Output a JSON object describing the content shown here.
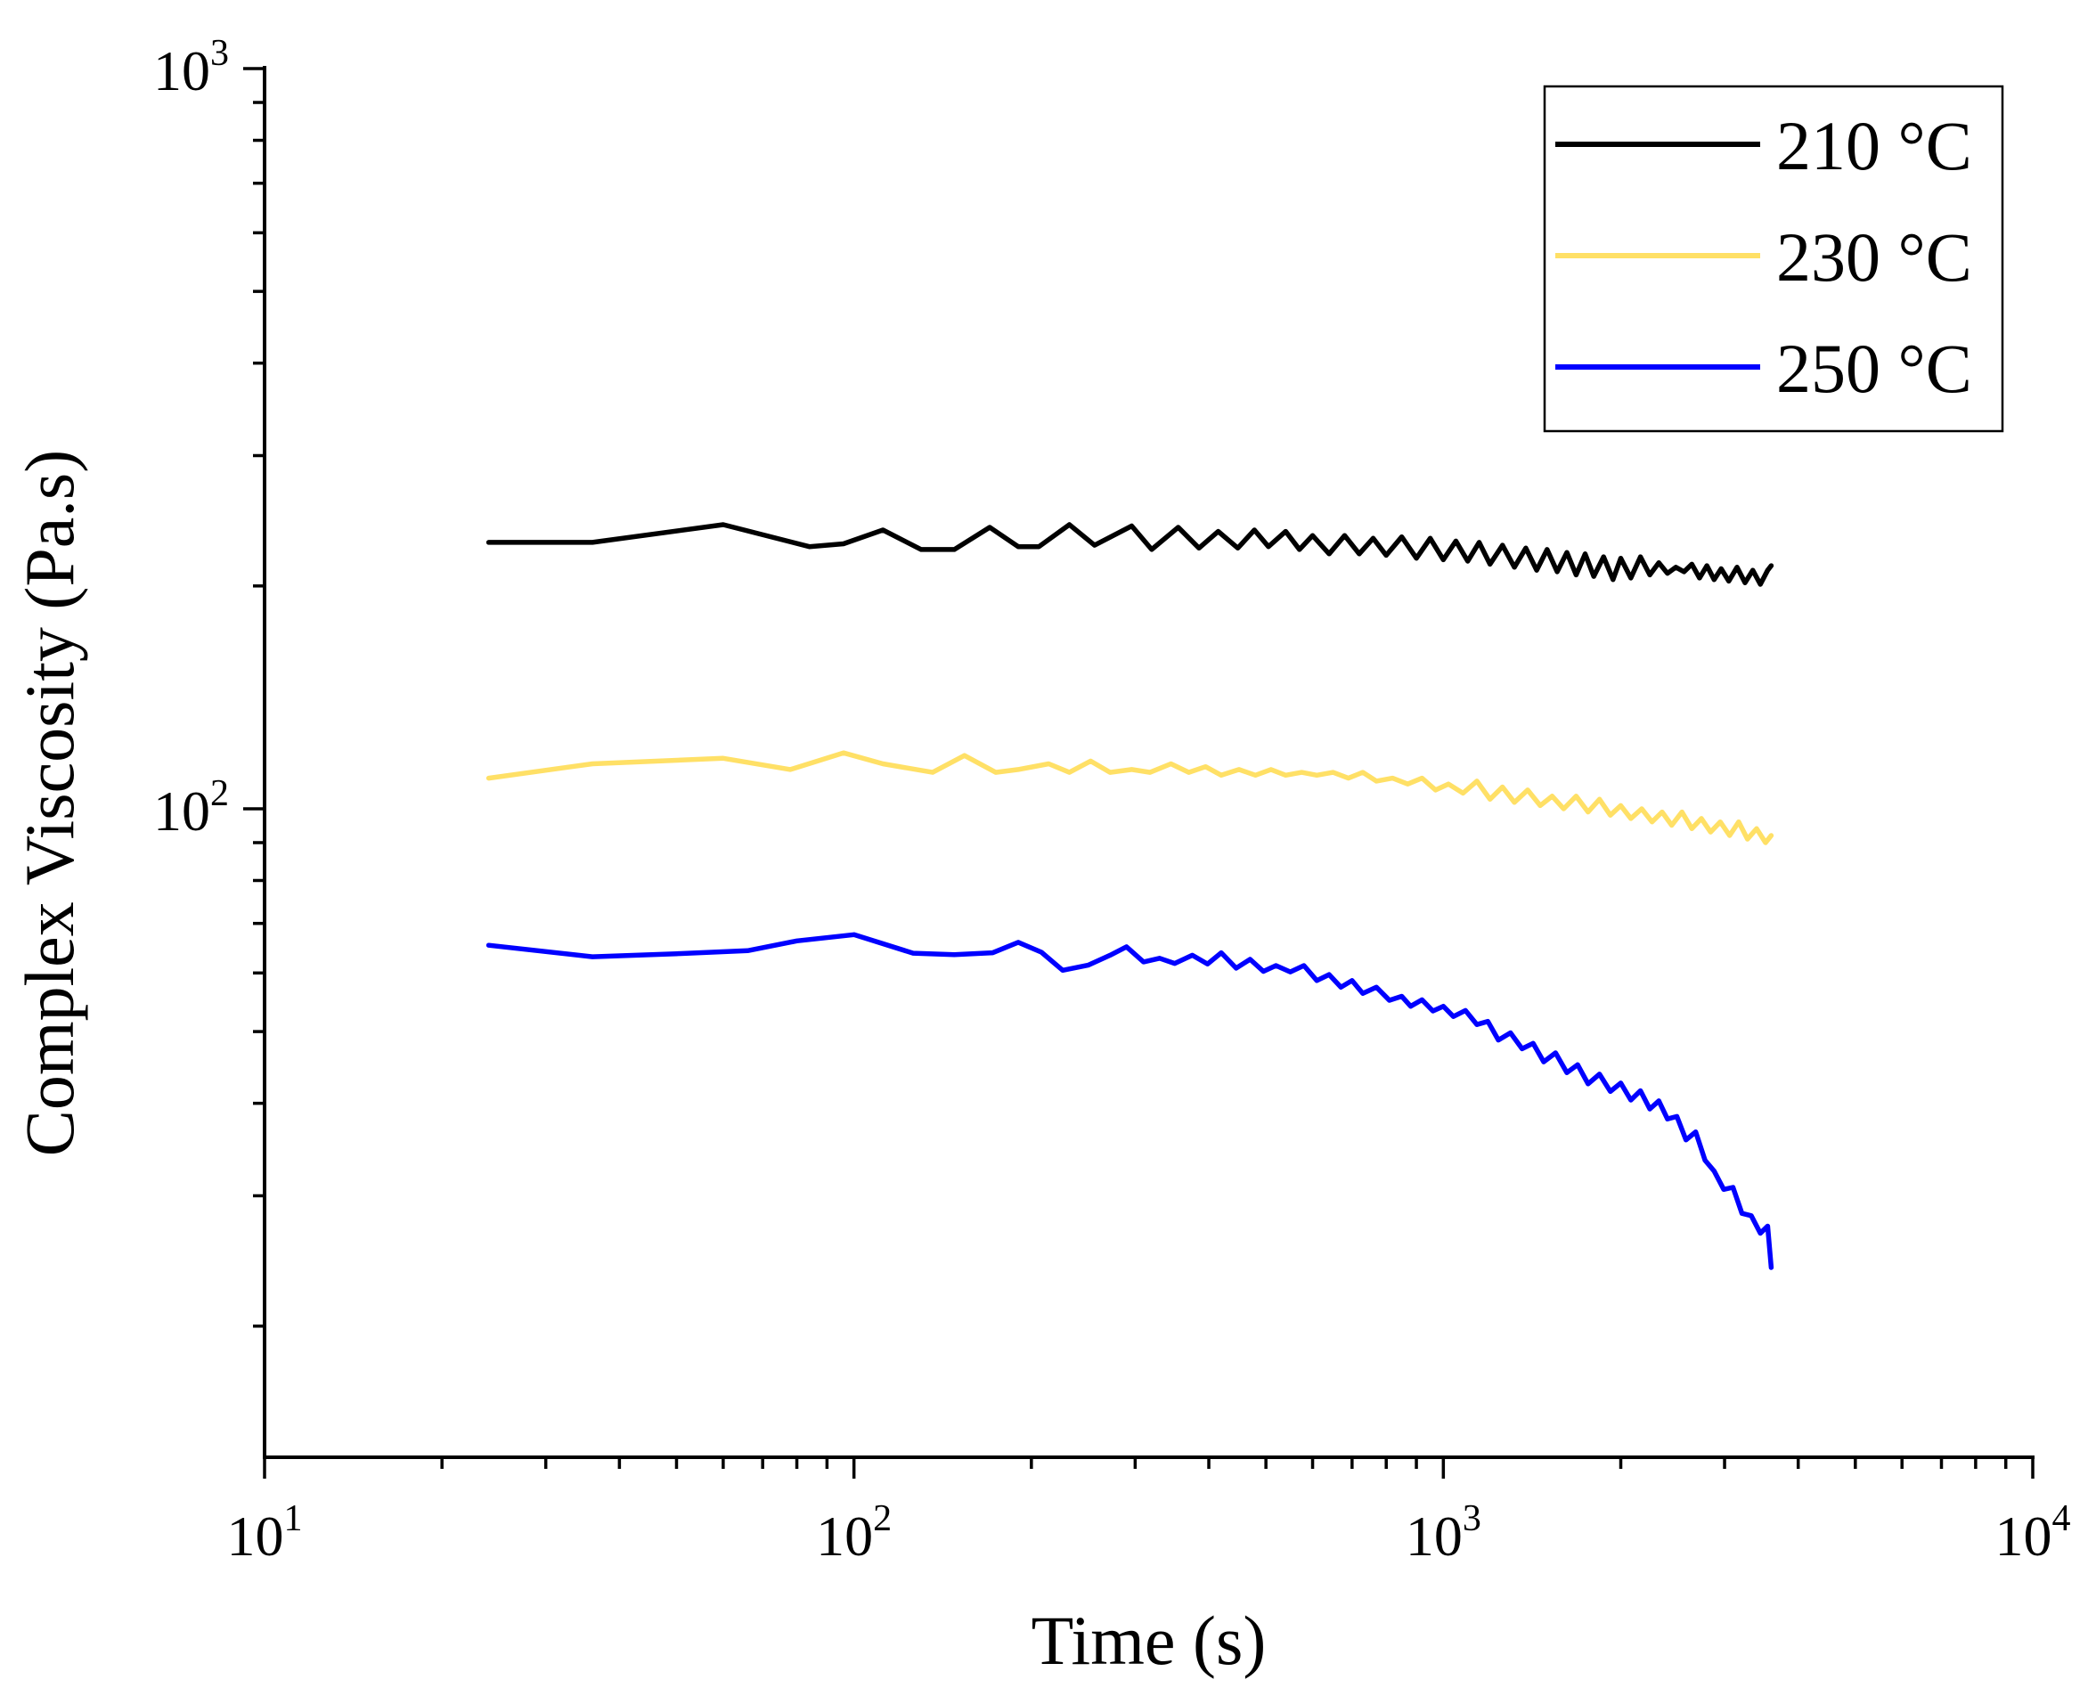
{
  "chart_data": {
    "type": "line",
    "title": "",
    "xlabel": "Time (s)",
    "ylabel": "Complex Viscosity (Pa.s)",
    "xscale": "log",
    "yscale": "log",
    "xlim": [
      10,
      10000
    ],
    "ylim": [
      13.3,
      1000
    ],
    "x_ticks": [
      {
        "value": 10,
        "base": "10",
        "exp": "1"
      },
      {
        "value": 100,
        "base": "10",
        "exp": "2"
      },
      {
        "value": 1000,
        "base": "10",
        "exp": "3"
      },
      {
        "value": 10000,
        "base": "10",
        "exp": "4"
      }
    ],
    "y_ticks": [
      {
        "value": 100,
        "base": "10",
        "exp": "2"
      },
      {
        "value": 1000,
        "base": "10",
        "exp": "3"
      }
    ],
    "legend_position": "top-right",
    "grid": false,
    "series": [
      {
        "name": "210 °C",
        "color": "#000000",
        "x": [
          24,
          36,
          60,
          84,
          96,
          112,
          130,
          148,
          170,
          190,
          206,
          232,
          256,
          296,
          320,
          355,
          385,
          415,
          448,
          478,
          505,
          540,
          570,
          600,
          640,
          680,
          720,
          760,
          800,
          850,
          900,
          950,
          1000,
          1050,
          1100,
          1150,
          1200,
          1260,
          1320,
          1380,
          1440,
          1500,
          1560,
          1620,
          1680,
          1740,
          1800,
          1870,
          1940,
          2000,
          2080,
          2160,
          2240,
          2320,
          2400,
          2480,
          2560,
          2640,
          2720,
          2800,
          2880,
          2960,
          3050,
          3150,
          3250,
          3350,
          3450,
          3550,
          3600
        ],
        "y": [
          229,
          229,
          242,
          226,
          228,
          238,
          224,
          224,
          240,
          226,
          226,
          242,
          227,
          241,
          224,
          240,
          225,
          237,
          225,
          238,
          226,
          237,
          224,
          234,
          221,
          234,
          221,
          232,
          220,
          233,
          218,
          232,
          217,
          230,
          216,
          229,
          214,
          227,
          212,
          225,
          210,
          224,
          209,
          222,
          207,
          221,
          206,
          219,
          204,
          218,
          205,
          219,
          207,
          215,
          208,
          212,
          209,
          214,
          205,
          213,
          204,
          211,
          203,
          212,
          202,
          210,
          201,
          210,
          213
        ]
      },
      {
        "name": "230 °C",
        "color": "#FFE066",
        "x": [
          24,
          36,
          60,
          78,
          96,
          112,
          136,
          154,
          174,
          190,
          214,
          232,
          252,
          272,
          296,
          318,
          345,
          370,
          395,
          420,
          450,
          480,
          510,
          540,
          575,
          610,
          650,
          690,
          730,
          770,
          820,
          870,
          920,
          970,
          1020,
          1080,
          1140,
          1200,
          1260,
          1320,
          1390,
          1460,
          1530,
          1600,
          1680,
          1760,
          1840,
          1920,
          2000,
          2080,
          2170,
          2260,
          2350,
          2440,
          2540,
          2640,
          2740,
          2840,
          2950,
          3060,
          3170,
          3280,
          3400,
          3520,
          3600
        ],
        "y": [
          110,
          115,
          117,
          113,
          119,
          115,
          112,
          118,
          112,
          113,
          115,
          112,
          116,
          112,
          113,
          112,
          115,
          112,
          114,
          111,
          113,
          111,
          113,
          111,
          112,
          111,
          112,
          110,
          112,
          109,
          110,
          108,
          110,
          106,
          108,
          105,
          109,
          103,
          107,
          102,
          106,
          101,
          104,
          100,
          104,
          99,
          103,
          98,
          101,
          97,
          100,
          96,
          99,
          95,
          99,
          94,
          97,
          93,
          96,
          92,
          96,
          91,
          94,
          90,
          92
        ]
      },
      {
        "name": "250 °C",
        "color": "#0000FF",
        "x": [
          24,
          36,
          50,
          66,
          80,
          100,
          126,
          148,
          172,
          190,
          208,
          226,
          250,
          272,
          290,
          310,
          330,
          350,
          375,
          398,
          420,
          445,
          470,
          495,
          520,
          550,
          580,
          610,
          640,
          670,
          700,
          730,
          770,
          810,
          850,
          880,
          920,
          960,
          1000,
          1040,
          1090,
          1140,
          1190,
          1240,
          1300,
          1360,
          1420,
          1480,
          1550,
          1620,
          1690,
          1760,
          1840,
          1920,
          2000,
          2080,
          2160,
          2240,
          2320,
          2400,
          2490,
          2580,
          2680,
          2780,
          2880,
          2990,
          3100,
          3210,
          3330,
          3450,
          3550,
          3600
        ],
        "y": [
          65.4,
          63.1,
          63.7,
          64.3,
          66.3,
          67.6,
          63.8,
          63.5,
          63.9,
          66.0,
          64.0,
          60.5,
          61.5,
          63.4,
          65.1,
          62.1,
          62.8,
          61.8,
          63.4,
          61.7,
          63.9,
          60.9,
          62.6,
          60.3,
          61.4,
          60.2,
          61.4,
          58.6,
          59.7,
          57.4,
          58.6,
          56.3,
          57.4,
          55.1,
          55.8,
          54.1,
          55.2,
          53.3,
          54.1,
          52.4,
          53.4,
          51.1,
          51.6,
          48.7,
          49.8,
          47.4,
          48.2,
          45.5,
          46.8,
          44.0,
          45.1,
          42.5,
          43.8,
          41.5,
          42.6,
          40.4,
          41.6,
          39.3,
          40.3,
          38.1,
          38.4,
          35.7,
          36.6,
          33.5,
          32.4,
          30.6,
          30.8,
          28.4,
          28.2,
          26.7,
          27.3,
          24.0
        ]
      }
    ]
  }
}
